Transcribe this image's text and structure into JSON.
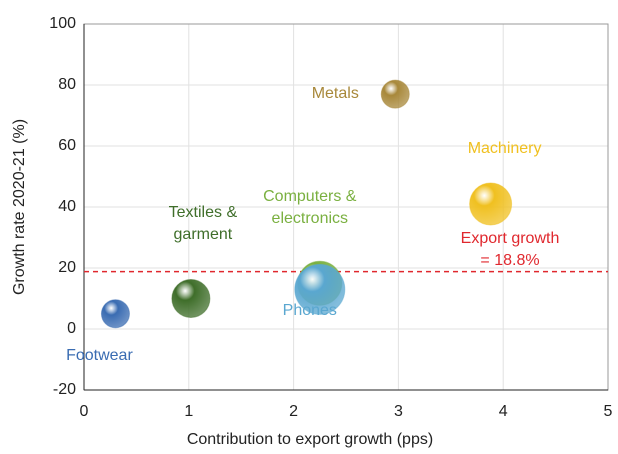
{
  "chart_data": {
    "type": "bubble",
    "xlabel": "Contribution to export growth (pps)",
    "ylabel": "Growth rate 2020-21 (%)",
    "categories": [
      "Footwear",
      "Textiles &\ngarment",
      "Computers &\nelectronics",
      "Phones",
      "Metals",
      "Machinery"
    ],
    "x": [
      0.3,
      1.02,
      2.25,
      2.25,
      2.97,
      3.88
    ],
    "values": [
      5,
      10,
      15,
      13,
      77,
      41
    ],
    "sizes": [
      14,
      19,
      22,
      25,
      14,
      21
    ],
    "colors": [
      "#3a6cb2",
      "#3f6e2a",
      "#7ab040",
      "#5aa7d0",
      "#a8883a",
      "#f0c020"
    ],
    "reference_line": {
      "value": 18.8,
      "label": "Export growth = 18.8%",
      "color": "#e0282e"
    },
    "xlim": [
      0,
      5
    ],
    "xticks": [
      0,
      1,
      2,
      3,
      4,
      5
    ],
    "ylim": [
      -20,
      100
    ],
    "yticks": [
      -20,
      0,
      20,
      40,
      60,
      80,
      100
    ],
    "grid": true
  }
}
